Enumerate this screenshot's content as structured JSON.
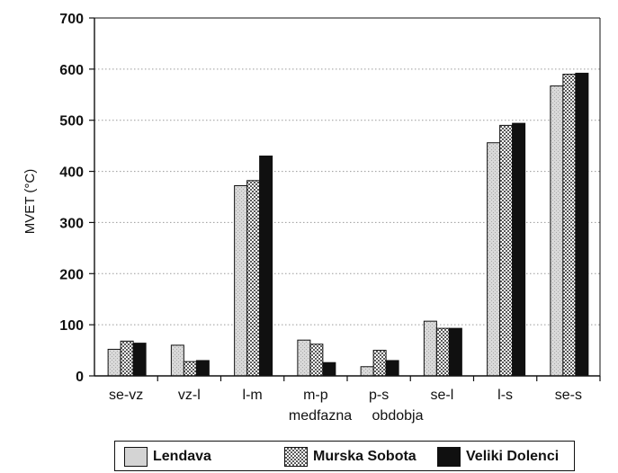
{
  "chart_data": {
    "type": "bar",
    "title": "",
    "ylabel": "MVET (°C)",
    "xlabel": [
      "medfazna",
      "obdobja"
    ],
    "ylim": [
      0,
      700
    ],
    "yticks": [
      0,
      100,
      200,
      300,
      400,
      500,
      600,
      700
    ],
    "grid": "dotted-horizontal",
    "legend_position": "bottom",
    "categories": [
      "se-vz",
      "vz-l",
      "l-m",
      "m-p",
      "p-s",
      "se-l",
      "l-s",
      "se-s"
    ],
    "series": [
      {
        "name": "Lendava",
        "values": [
          52,
          60,
          372,
          70,
          18,
          107,
          456,
          567
        ],
        "fill": "light-gray"
      },
      {
        "name": "Murska Sobota",
        "values": [
          68,
          28,
          382,
          62,
          50,
          93,
          490,
          590
        ],
        "fill": "checkered"
      },
      {
        "name": "Veliki Dolenci",
        "values": [
          64,
          30,
          430,
          26,
          30,
          93,
          494,
          592
        ],
        "fill": "black"
      }
    ],
    "colors": {
      "light": "#d4d4d4",
      "checker_dark": "#6a6a6a",
      "checker_light": "#ffffff",
      "dark": "#101010",
      "grid": "#9a9a9a"
    }
  }
}
